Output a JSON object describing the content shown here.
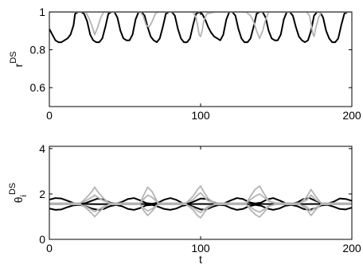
{
  "chart_data": [
    {
      "type": "line",
      "title": "",
      "xlabel": "",
      "ylabel": "r",
      "ylabel_superscript": "DS",
      "xlim": [
        0,
        200
      ],
      "ylim": [
        0.5,
        1.0
      ],
      "x_ticks": [
        0,
        100,
        200
      ],
      "y_ticks": [
        0.6,
        0.8,
        1
      ],
      "x_tick_labels": [
        "0",
        "100",
        "200"
      ],
      "y_tick_labels": [
        "0.6",
        "0.8",
        "1"
      ],
      "grid": false,
      "series": [
        {
          "color": "#000000",
          "x": [
            0,
            2,
            4,
            6,
            8,
            10,
            12,
            14,
            16,
            17,
            19,
            21,
            23,
            25,
            27,
            29,
            31,
            33,
            35,
            37,
            39,
            41,
            43,
            45,
            47,
            49,
            51,
            53,
            55,
            57,
            59,
            61,
            63,
            65,
            67,
            69,
            71,
            73,
            75,
            77,
            79,
            81,
            83,
            85,
            87,
            89,
            91,
            93,
            95,
            97,
            99,
            101,
            103,
            105,
            107,
            109,
            111,
            113,
            115,
            117,
            119,
            121,
            123,
            125,
            127,
            129,
            131,
            133,
            135,
            137,
            139,
            141,
            143,
            145,
            147,
            149,
            151,
            153,
            155,
            157,
            159,
            161,
            163,
            165,
            167,
            169,
            171,
            173,
            175,
            177,
            179,
            181,
            183,
            185,
            187,
            189,
            191,
            193,
            195,
            197,
            199,
            200
          ],
          "y": [
            0.91,
            0.88,
            0.85,
            0.84,
            0.84,
            0.85,
            0.86,
            0.88,
            0.93,
            0.99,
            1.0,
            1.0,
            0.99,
            0.95,
            0.88,
            0.85,
            0.84,
            0.84,
            0.86,
            0.92,
            0.99,
            1.0,
            1.0,
            0.97,
            0.9,
            0.86,
            0.85,
            0.85,
            0.88,
            0.96,
            1.0,
            1.0,
            0.98,
            0.92,
            0.87,
            0.85,
            0.84,
            0.86,
            0.92,
            0.99,
            1.0,
            1.0,
            0.98,
            0.91,
            0.86,
            0.84,
            0.84,
            0.86,
            0.93,
            0.99,
            1.0,
            0.99,
            0.96,
            0.92,
            0.89,
            0.87,
            0.86,
            0.85,
            0.88,
            0.96,
            1.0,
            1.0,
            0.98,
            0.91,
            0.86,
            0.84,
            0.84,
            0.86,
            0.92,
            0.99,
            1.0,
            1.0,
            0.97,
            0.9,
            0.86,
            0.85,
            0.85,
            0.88,
            0.96,
            1.0,
            1.0,
            0.98,
            0.92,
            0.87,
            0.85,
            0.84,
            0.85,
            0.9,
            0.98,
            1.0,
            1.0,
            0.97,
            0.9,
            0.86,
            0.84,
            0.84,
            0.86,
            0.93,
            0.99,
            1.0,
            1.0,
            1.0
          ]
        },
        {
          "color": "#b4b4b4",
          "x": [
            0,
            10,
            20,
            24,
            26,
            28,
            30,
            32,
            34,
            36,
            40,
            50,
            60,
            62,
            64,
            66,
            68,
            70,
            72,
            80,
            90,
            95,
            97,
            98,
            99,
            100,
            101,
            102,
            104,
            110,
            120,
            130,
            133,
            135,
            137,
            139,
            141,
            143,
            145,
            150,
            160,
            170,
            172,
            173,
            174,
            175,
            176,
            178,
            180,
            190,
            200
          ],
          "y": [
            1.0,
            1.0,
            1.0,
            1.0,
            0.97,
            0.93,
            0.88,
            0.92,
            0.97,
            1.0,
            1.0,
            1.0,
            1.0,
            0.98,
            0.93,
            0.92,
            0.95,
            0.99,
            1.0,
            1.0,
            1.0,
            1.0,
            0.97,
            0.93,
            0.88,
            0.87,
            0.9,
            0.95,
            0.99,
            1.0,
            1.0,
            1.0,
            0.98,
            0.95,
            0.9,
            0.86,
            0.9,
            0.96,
            1.0,
            1.0,
            1.0,
            1.0,
            0.98,
            0.94,
            0.89,
            0.87,
            0.91,
            0.97,
            1.0,
            1.0,
            1.0
          ]
        },
        {
          "color": "#d8d8d8",
          "x": [
            0,
            200
          ],
          "y": [
            1.0,
            1.0
          ]
        }
      ]
    },
    {
      "type": "line",
      "title": "",
      "xlabel": "t",
      "ylabel": "θ",
      "ylabel_subscript": "i",
      "ylabel_superscript": "DS",
      "xlim": [
        0,
        200
      ],
      "ylim": [
        0,
        4.1
      ],
      "x_ticks": [
        0,
        100,
        200
      ],
      "y_ticks": [
        0,
        2,
        4
      ],
      "x_tick_labels": [
        "0",
        "100",
        "200"
      ],
      "y_tick_labels": [
        "0",
        "2",
        "4"
      ],
      "grid": false,
      "series": [
        {
          "color": "#000000",
          "x": [
            0,
            4,
            8,
            12,
            16,
            20,
            24,
            28,
            32,
            36,
            40,
            44,
            48,
            52,
            56,
            60,
            64,
            68,
            72,
            76,
            80,
            84,
            88,
            92,
            96,
            100,
            104,
            108,
            112,
            116,
            120,
            124,
            128,
            132,
            136,
            140,
            144,
            148,
            152,
            156,
            160,
            164,
            168,
            172,
            176,
            180,
            184,
            188,
            192,
            196,
            200
          ],
          "y": [
            1.75,
            1.82,
            1.8,
            1.7,
            1.6,
            1.57,
            1.6,
            1.7,
            1.8,
            1.75,
            1.62,
            1.58,
            1.65,
            1.78,
            1.82,
            1.72,
            1.6,
            1.57,
            1.62,
            1.75,
            1.82,
            1.74,
            1.6,
            1.58,
            1.68,
            1.8,
            1.78,
            1.65,
            1.57,
            1.6,
            1.72,
            1.82,
            1.78,
            1.64,
            1.58,
            1.62,
            1.76,
            1.82,
            1.72,
            1.6,
            1.57,
            1.63,
            1.78,
            1.82,
            1.7,
            1.6,
            1.58,
            1.66,
            1.8,
            1.78,
            1.7
          ]
        },
        {
          "color": "#000000",
          "x": [
            0,
            4,
            8,
            12,
            16,
            20,
            24,
            28,
            32,
            36,
            40,
            44,
            48,
            52,
            56,
            60,
            64,
            68,
            72,
            76,
            80,
            84,
            88,
            92,
            96,
            100,
            104,
            108,
            112,
            116,
            120,
            124,
            128,
            132,
            136,
            140,
            144,
            148,
            152,
            156,
            160,
            164,
            168,
            172,
            176,
            180,
            184,
            188,
            192,
            196,
            200
          ],
          "y": [
            1.36,
            1.3,
            1.32,
            1.42,
            1.5,
            1.52,
            1.46,
            1.36,
            1.3,
            1.34,
            1.46,
            1.52,
            1.46,
            1.34,
            1.3,
            1.38,
            1.5,
            1.52,
            1.44,
            1.34,
            1.3,
            1.36,
            1.48,
            1.52,
            1.42,
            1.32,
            1.32,
            1.44,
            1.52,
            1.5,
            1.38,
            1.3,
            1.34,
            1.46,
            1.52,
            1.48,
            1.36,
            1.3,
            1.36,
            1.48,
            1.52,
            1.46,
            1.34,
            1.3,
            1.38,
            1.5,
            1.52,
            1.44,
            1.34,
            1.32,
            1.4
          ]
        },
        {
          "color": "#000000",
          "x": [
            0,
            20,
            40,
            60,
            80,
            100,
            120,
            140,
            160,
            180,
            200
          ],
          "y": [
            1.55,
            1.56,
            1.55,
            1.56,
            1.55,
            1.56,
            1.55,
            1.56,
            1.55,
            1.56,
            1.55
          ]
        },
        {
          "color": "#b4b4b4",
          "x": [
            0,
            20,
            24,
            28,
            30,
            32,
            36,
            40,
            60,
            62,
            65,
            68,
            72,
            90,
            95,
            98,
            100,
            102,
            105,
            110,
            130,
            133,
            136,
            139,
            142,
            145,
            150,
            165,
            170,
            173,
            176,
            180,
            200
          ],
          "y": [
            1.57,
            1.57,
            1.8,
            2.1,
            2.3,
            2.1,
            1.8,
            1.57,
            1.57,
            1.9,
            2.3,
            2.1,
            1.57,
            1.57,
            1.9,
            2.2,
            2.35,
            2.1,
            1.8,
            1.57,
            1.57,
            1.9,
            2.2,
            2.35,
            2.0,
            1.7,
            1.57,
            1.57,
            1.85,
            2.2,
            1.9,
            1.57,
            1.57
          ]
        },
        {
          "color": "#b4b4b4",
          "x": [
            0,
            20,
            24,
            28,
            30,
            32,
            36,
            40,
            60,
            62,
            65,
            68,
            72,
            90,
            95,
            98,
            100,
            102,
            105,
            110,
            130,
            133,
            136,
            139,
            142,
            145,
            150,
            165,
            170,
            173,
            176,
            180,
            200
          ],
          "y": [
            1.57,
            1.57,
            1.4,
            1.15,
            1.0,
            1.15,
            1.4,
            1.57,
            1.57,
            1.3,
            1.05,
            1.25,
            1.57,
            1.57,
            1.3,
            1.05,
            0.95,
            1.15,
            1.4,
            1.57,
            1.57,
            1.3,
            1.1,
            0.98,
            1.2,
            1.45,
            1.57,
            1.57,
            1.35,
            1.05,
            1.3,
            1.57,
            1.57
          ]
        },
        {
          "color": "#b4b4b4",
          "x": [
            0,
            20,
            24,
            28,
            30,
            32,
            36,
            40,
            60,
            62,
            65,
            68,
            72,
            90,
            95,
            98,
            100,
            102,
            105,
            110,
            130,
            133,
            136,
            139,
            142,
            145,
            150,
            165,
            170,
            173,
            176,
            180,
            200
          ],
          "y": [
            1.6,
            1.6,
            1.7,
            1.85,
            1.95,
            1.85,
            1.7,
            1.6,
            1.6,
            1.75,
            1.95,
            1.85,
            1.6,
            1.6,
            1.75,
            1.95,
            2.05,
            1.9,
            1.7,
            1.6,
            1.6,
            1.75,
            1.9,
            2.0,
            1.85,
            1.68,
            1.6,
            1.6,
            1.72,
            1.95,
            1.75,
            1.6,
            1.6
          ]
        },
        {
          "color": "#b4b4b4",
          "x": [
            0,
            20,
            24,
            28,
            30,
            32,
            36,
            40,
            60,
            62,
            65,
            68,
            72,
            90,
            95,
            98,
            100,
            102,
            105,
            110,
            130,
            133,
            136,
            139,
            142,
            145,
            150,
            165,
            170,
            173,
            176,
            180,
            200
          ],
          "y": [
            1.54,
            1.54,
            1.45,
            1.3,
            1.22,
            1.3,
            1.45,
            1.54,
            1.54,
            1.4,
            1.25,
            1.35,
            1.54,
            1.54,
            1.4,
            1.25,
            1.18,
            1.3,
            1.45,
            1.54,
            1.54,
            1.42,
            1.28,
            1.2,
            1.32,
            1.48,
            1.54,
            1.54,
            1.44,
            1.25,
            1.4,
            1.54,
            1.54
          ]
        }
      ]
    }
  ]
}
